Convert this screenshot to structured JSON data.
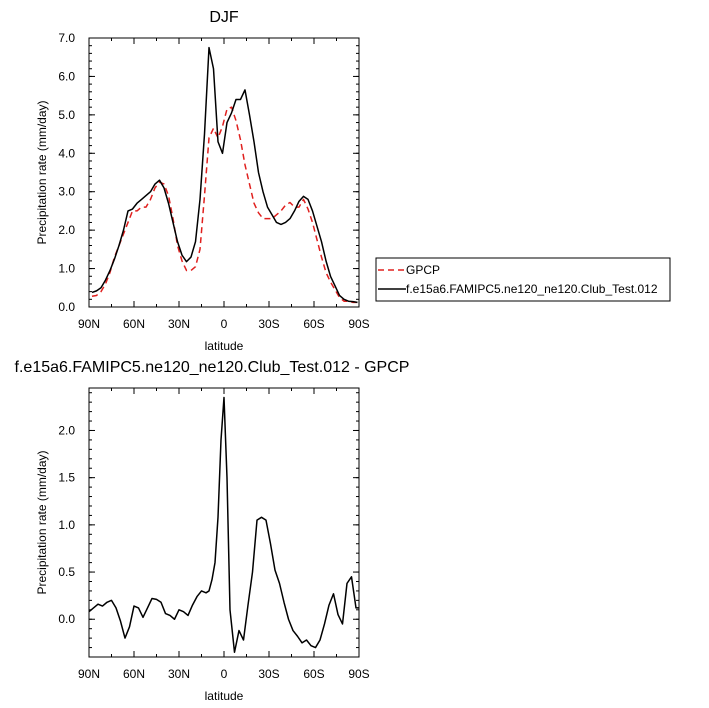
{
  "chart_data": [
    {
      "type": "line",
      "title": "DJF",
      "xlabel": "latitude",
      "ylabel": "Precipitation rate (mm/day)",
      "xlim": [
        90,
        -90
      ],
      "ylim": [
        0,
        7
      ],
      "x_ticks": [
        90,
        60,
        30,
        0,
        -30,
        -60,
        -90
      ],
      "x_tick_labels": [
        "90N",
        "60N",
        "30N",
        "0",
        "30S",
        "60S",
        "90S"
      ],
      "y_ticks": [
        0,
        1,
        2,
        3,
        4,
        5,
        6,
        7
      ],
      "y_tick_labels": [
        "0.0",
        "1.0",
        "2.0",
        "3.0",
        "4.0",
        "5.0",
        "6.0",
        "7.0"
      ],
      "legend_position": "right",
      "series": [
        {
          "name": "GPCP",
          "color": "#e0201e",
          "dash": "dashed",
          "x": [
            88,
            85,
            82,
            79,
            76,
            73,
            70,
            67,
            64,
            61,
            58,
            55,
            52,
            49,
            46,
            43,
            40,
            37,
            34,
            31,
            28,
            25,
            22,
            19,
            16,
            13,
            10,
            7,
            4,
            1,
            -2,
            -5,
            -8,
            -11,
            -14,
            -17,
            -20,
            -23,
            -26,
            -29,
            -32,
            -35,
            -38,
            -41,
            -44,
            -47,
            -50,
            -53,
            -56,
            -59,
            -62,
            -65,
            -68,
            -71,
            -74,
            -77,
            -80,
            -83,
            -86,
            -89
          ],
          "y": [
            0.28,
            0.3,
            0.4,
            0.6,
            0.9,
            1.3,
            1.6,
            1.9,
            2.2,
            2.5,
            2.5,
            2.6,
            2.6,
            2.8,
            3.1,
            3.25,
            3.2,
            2.9,
            2.3,
            1.6,
            1.2,
            0.95,
            0.95,
            1.05,
            1.5,
            2.9,
            4.4,
            4.65,
            4.4,
            4.7,
            5.15,
            5.2,
            4.85,
            4.35,
            3.7,
            3.2,
            2.7,
            2.45,
            2.3,
            2.3,
            2.3,
            2.4,
            2.5,
            2.65,
            2.72,
            2.6,
            2.6,
            2.8,
            2.55,
            2.2,
            1.75,
            1.3,
            0.9,
            0.65,
            0.45,
            0.25,
            0.15,
            0.15,
            0.12,
            0.12
          ]
        },
        {
          "name": "f.e15a6.FAMIPC5.ne120_ne120.Club_Test.012",
          "color": "#000000",
          "dash": "solid",
          "x": [
            88,
            85,
            82,
            79,
            76,
            73,
            70,
            67,
            64,
            61,
            58,
            55,
            52,
            49,
            46,
            43,
            40,
            37,
            34,
            31,
            28,
            25,
            22,
            19,
            16,
            13,
            10,
            7,
            4,
            1,
            -2,
            -5,
            -8,
            -11,
            -14,
            -17,
            -20,
            -23,
            -26,
            -29,
            -32,
            -35,
            -38,
            -41,
            -44,
            -47,
            -50,
            -53,
            -56,
            -59,
            -62,
            -65,
            -68,
            -71,
            -74,
            -77,
            -80,
            -83,
            -86,
            -89
          ],
          "y": [
            0.38,
            0.42,
            0.5,
            0.7,
            0.95,
            1.25,
            1.6,
            2.0,
            2.5,
            2.55,
            2.7,
            2.8,
            2.9,
            3.0,
            3.2,
            3.3,
            3.1,
            2.7,
            2.2,
            1.7,
            1.35,
            1.18,
            1.3,
            1.7,
            2.8,
            4.5,
            6.75,
            6.2,
            4.3,
            4.0,
            4.8,
            5.05,
            5.4,
            5.4,
            5.65,
            5.0,
            4.3,
            3.5,
            3.0,
            2.6,
            2.4,
            2.2,
            2.15,
            2.2,
            2.3,
            2.5,
            2.75,
            2.88,
            2.8,
            2.5,
            2.1,
            1.7,
            1.2,
            0.8,
            0.55,
            0.3,
            0.2,
            0.15,
            0.14,
            0.12
          ]
        }
      ]
    },
    {
      "type": "line",
      "title": "f.e15a6.FAMIPC5.ne120_ne120.Club_Test.012 - GPCP",
      "xlabel": "latitude",
      "ylabel": "Precipitation rate (mm/day)",
      "xlim": [
        90,
        -90
      ],
      "ylim": [
        -0.4,
        2.45
      ],
      "x_ticks": [
        90,
        60,
        30,
        0,
        -30,
        -60,
        -90
      ],
      "x_tick_labels": [
        "90N",
        "60N",
        "30N",
        "0",
        "30S",
        "60S",
        "90S"
      ],
      "y_ticks": [
        0,
        0.5,
        1,
        1.5,
        2
      ],
      "y_tick_labels": [
        "0.0",
        "0.5",
        "1.0",
        "1.5",
        "2.0"
      ],
      "series": [
        {
          "color": "#000000",
          "dash": "solid",
          "x": [
            90,
            87,
            84,
            81,
            78,
            75,
            72,
            69,
            66,
            63,
            60,
            57,
            54,
            51,
            48,
            45,
            42,
            39,
            36,
            33,
            30,
            27,
            24,
            21,
            18,
            15,
            12,
            10,
            8,
            6,
            4,
            2,
            0,
            -2,
            -4,
            -7,
            -10,
            -13,
            -16,
            -19,
            -22,
            -25,
            -28,
            -31,
            -34,
            -37,
            -40,
            -43,
            -46,
            -49,
            -52,
            -55,
            -58,
            -61,
            -64,
            -67,
            -70,
            -73,
            -76,
            -79,
            -82,
            -85,
            -88,
            -90
          ],
          "y": [
            0.08,
            0.12,
            0.16,
            0.14,
            0.18,
            0.2,
            0.12,
            -0.02,
            -0.2,
            -0.08,
            0.14,
            0.12,
            0.02,
            0.12,
            0.22,
            0.21,
            0.18,
            0.06,
            0.04,
            0.0,
            0.1,
            0.08,
            0.04,
            0.15,
            0.24,
            0.3,
            0.28,
            0.3,
            0.42,
            0.6,
            1.08,
            1.9,
            2.35,
            1.5,
            0.1,
            -0.35,
            -0.12,
            -0.22,
            0.15,
            0.5,
            1.05,
            1.08,
            1.05,
            0.8,
            0.52,
            0.38,
            0.18,
            0.0,
            -0.12,
            -0.18,
            -0.25,
            -0.22,
            -0.28,
            -0.3,
            -0.22,
            -0.05,
            0.15,
            0.27,
            0.05,
            -0.05,
            0.38,
            0.45,
            0.12,
            0.12
          ]
        }
      ]
    }
  ]
}
